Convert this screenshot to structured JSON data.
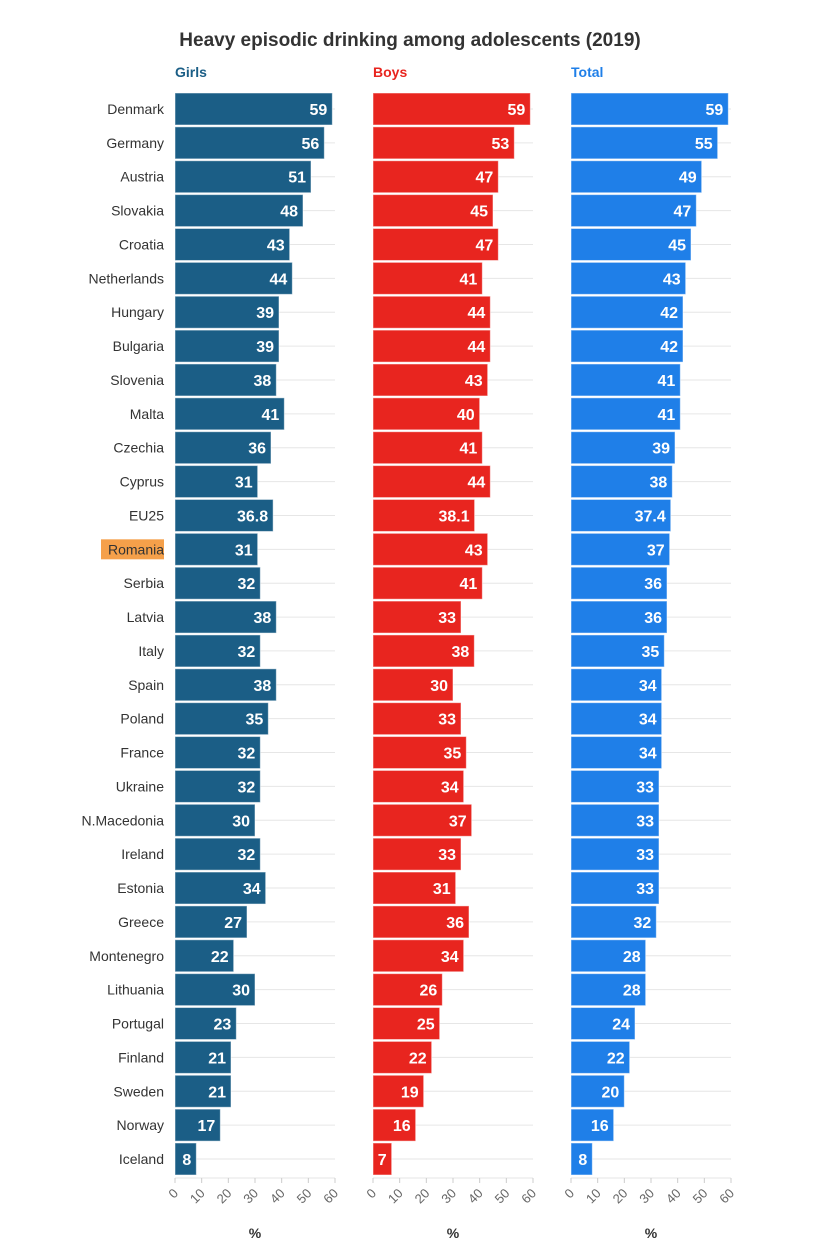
{
  "chart_data": {
    "type": "bar",
    "orientation": "horizontal",
    "title": "Heavy episodic drinking among adolescents (2019)",
    "categories": [
      "Denmark",
      "Germany",
      "Austria",
      "Slovakia",
      "Croatia",
      "Netherlands",
      "Hungary",
      "Bulgaria",
      "Slovenia",
      "Malta",
      "Czechia",
      "Cyprus",
      "EU25",
      "Romania",
      "Serbia",
      "Latvia",
      "Italy",
      "Spain",
      "Poland",
      "France",
      "Ukraine",
      "N.Macedonia",
      "Ireland",
      "Estonia",
      "Greece",
      "Montenegro",
      "Lithuania",
      "Portugal",
      "Finland",
      "Sweden",
      "Norway",
      "Iceland"
    ],
    "highlighted_category": "Romania",
    "highlight_color": "#f5a04a",
    "series": [
      {
        "name": "Girls",
        "color": "#1b5e86",
        "values": [
          59,
          56,
          51,
          48,
          43,
          44,
          39,
          39,
          38,
          41,
          36,
          31,
          36.8,
          31,
          32,
          38,
          32,
          38,
          35,
          32,
          32,
          30,
          32,
          34,
          27,
          22,
          30,
          23,
          21,
          21,
          17,
          8
        ]
      },
      {
        "name": "Boys",
        "color": "#e8251f",
        "values": [
          59,
          53,
          47,
          45,
          47,
          41,
          44,
          44,
          43,
          40,
          41,
          44,
          38.1,
          43,
          41,
          33,
          38,
          30,
          33,
          35,
          34,
          37,
          33,
          31,
          36,
          34,
          26,
          25,
          22,
          19,
          16,
          7
        ]
      },
      {
        "name": "Total",
        "color": "#1f7fe8",
        "values": [
          59,
          55,
          49,
          47,
          45,
          43,
          42,
          42,
          41,
          41,
          39,
          38,
          37.4,
          37,
          36,
          36,
          35,
          34,
          34,
          34,
          33,
          33,
          33,
          33,
          32,
          28,
          28,
          24,
          22,
          20,
          16,
          8
        ]
      }
    ],
    "xlim": [
      0,
      60
    ],
    "xticks": [
      "0",
      "10",
      "20",
      "30",
      "40",
      "50",
      "60"
    ],
    "xlabel": "%",
    "grid": true
  }
}
